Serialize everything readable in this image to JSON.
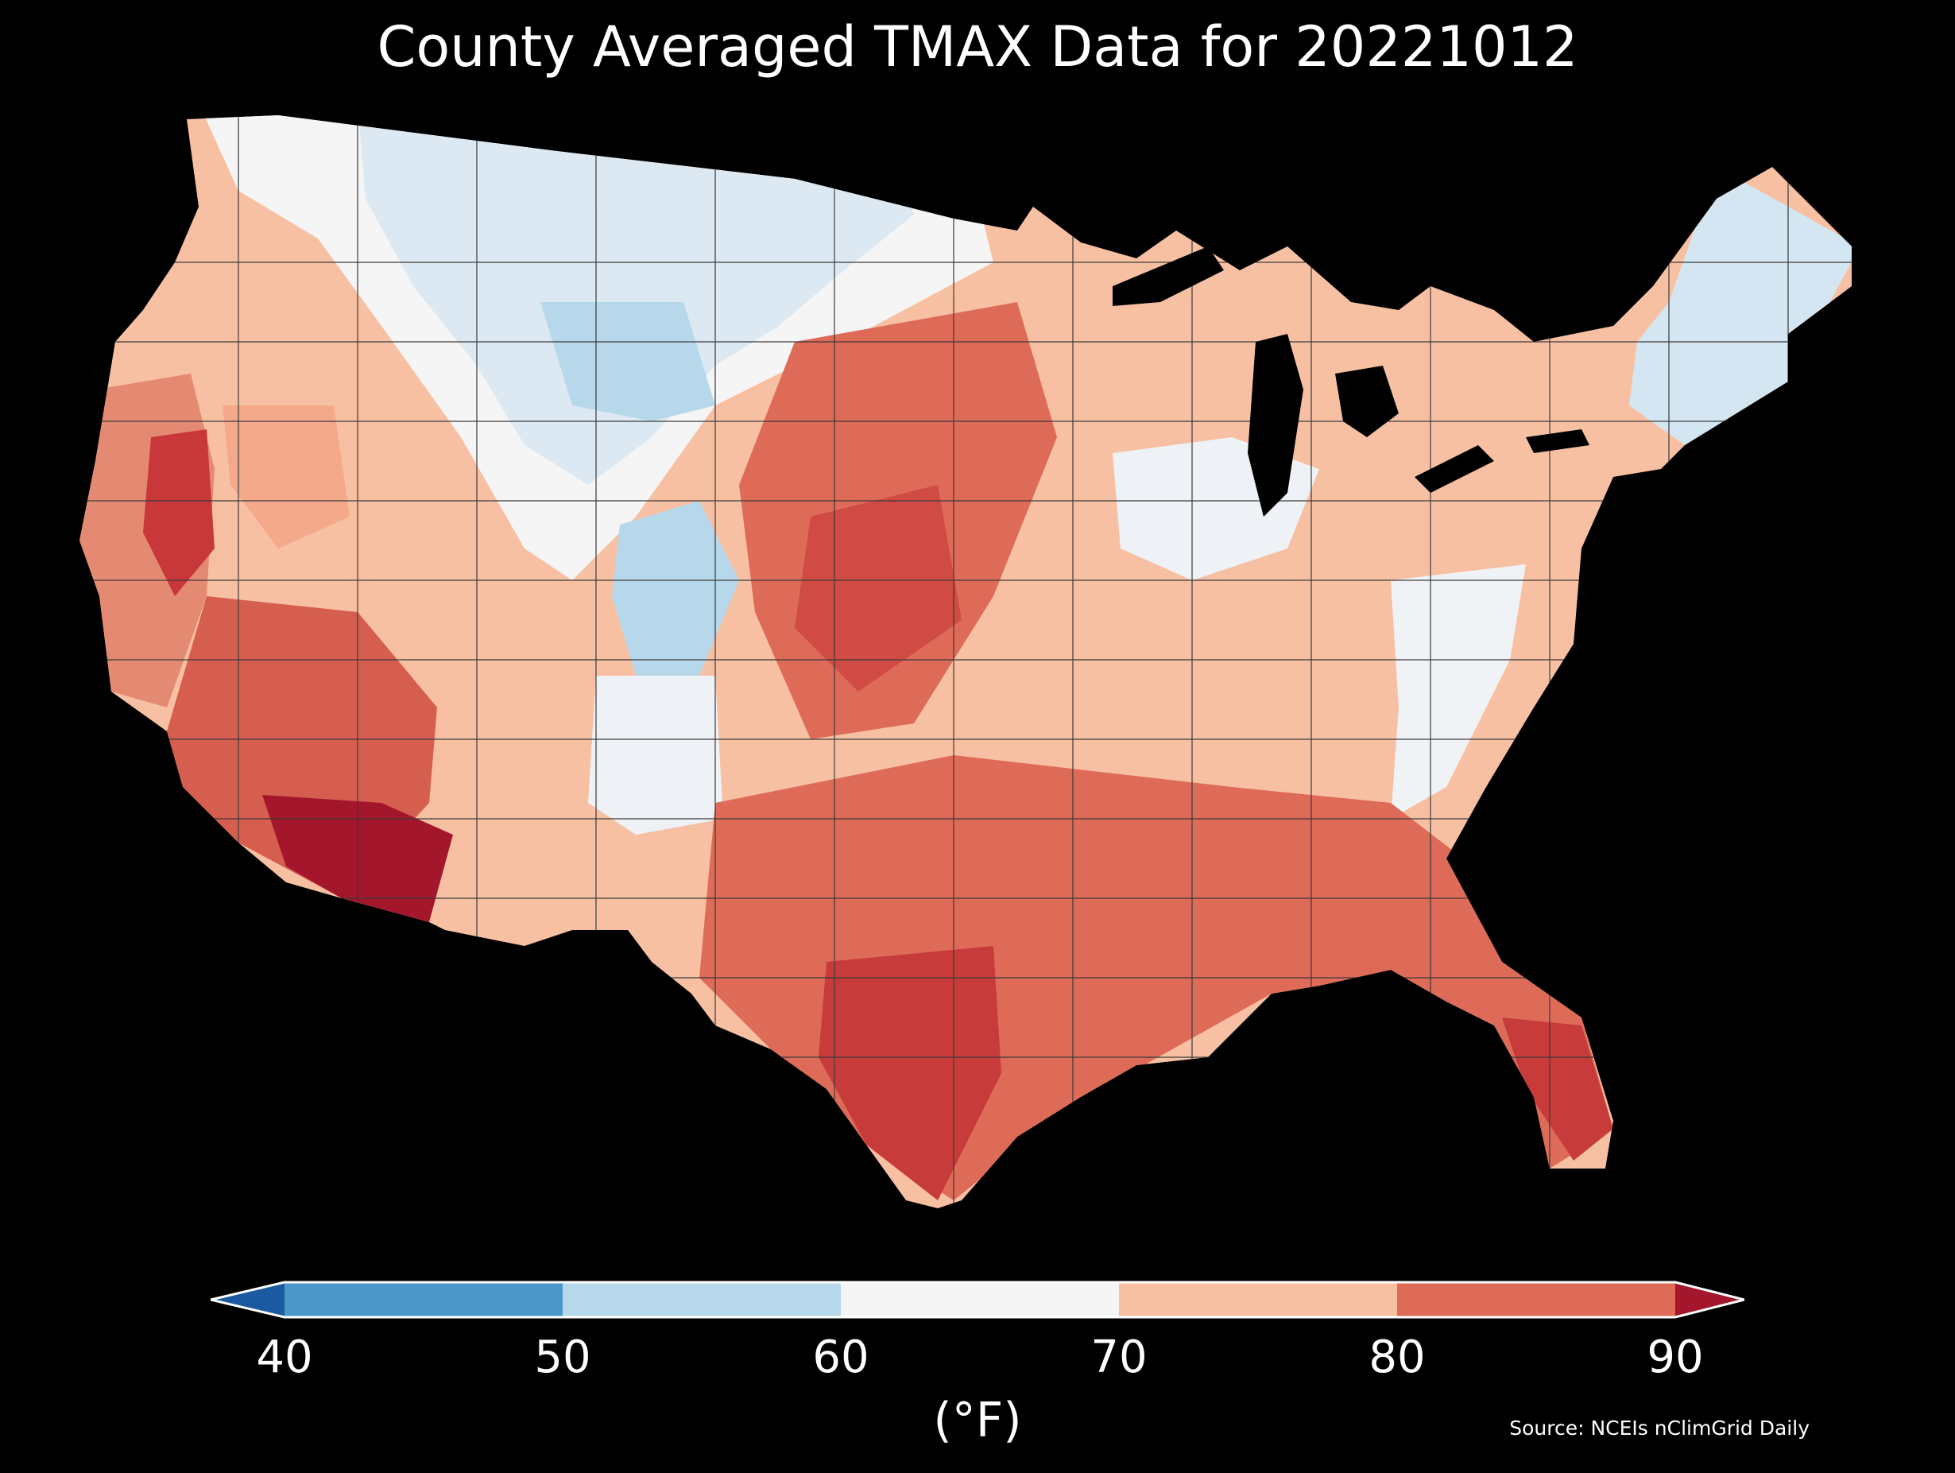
{
  "title": "County Averaged TMAX Data for 20221012",
  "colorbar": {
    "ticks": [
      "40",
      "50",
      "60",
      "70",
      "80",
      "90"
    ],
    "unit": "(°F)",
    "colors": [
      "#1b5aa0",
      "#4a97c8",
      "#b7d8ea",
      "#f5f5f5",
      "#f8c0a3",
      "#de6a58",
      "#a3162c"
    ]
  },
  "source": "Source: NCEIs nClimGrid Daily",
  "background": "#000000",
  "map_regions": [
    {
      "region": "Pacific Northwest coast",
      "bin": "70-80"
    },
    {
      "region": "Washington / Idaho panhandle",
      "bin": "60-70"
    },
    {
      "region": "Montana / Wyoming",
      "bin": "50-60"
    },
    {
      "region": "Colorado mountains",
      "bin": "50-60"
    },
    {
      "region": "Great Basin / Nevada",
      "bin": "70-80"
    },
    {
      "region": "California Central Valley",
      "bin": "80-90"
    },
    {
      "region": "Southern Arizona",
      "bin": ">90"
    },
    {
      "region": "Great Plains (KS/NE)",
      "bin": "80-90"
    },
    {
      "region": "Upper Midwest",
      "bin": "70-80"
    },
    {
      "region": "Ohio Valley / Appalachians",
      "bin": "60-70"
    },
    {
      "region": "New England",
      "bin": "50-60"
    },
    {
      "region": "Texas / Gulf Coast",
      "bin": "80-90"
    },
    {
      "region": "Florida",
      "bin": "80-90"
    },
    {
      "region": "Southeast",
      "bin": "70-80"
    }
  ]
}
